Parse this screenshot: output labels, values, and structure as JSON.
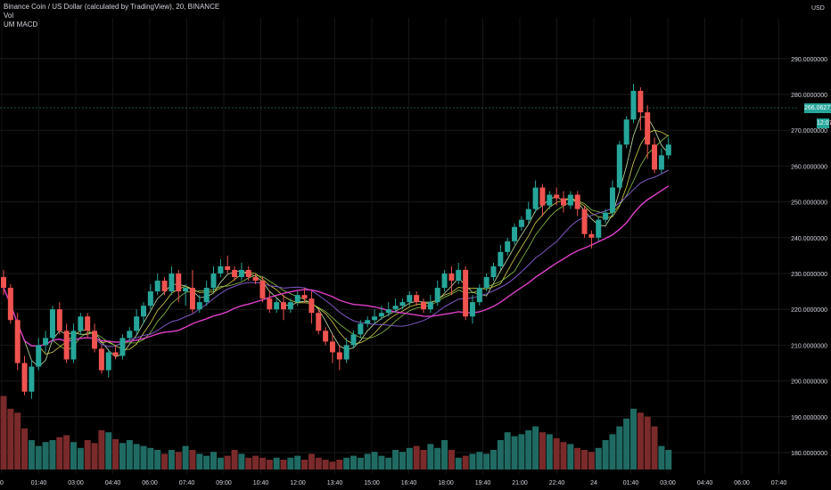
{
  "legend": {
    "title": "Binance Coin / US Dollar (calculated by TradingView), 20, BINANCE",
    "vol": "Vol",
    "indicator": "UM MACD"
  },
  "price_axis": {
    "unit": "USD",
    "current_price": "266.0627735",
    "countdown": "12:07"
  },
  "colors": {
    "up": "#26a69a",
    "down": "#ef5350",
    "vol_up": "#1f6b63",
    "vol_down": "#7a2a2a",
    "ma_magenta": "#e040c8",
    "ma_purple": "#7e57c2",
    "ma_yellow": "#d4d04a",
    "ma_green": "#8bc34a",
    "ma_lightgreen": "#c5e1a5",
    "background": "#000000"
  },
  "chart_data": {
    "type": "candlestick",
    "yaxis": {
      "min": 180,
      "max": 290,
      "ticks": [
        "180.0000000",
        "190.0000000",
        "200.0000000",
        "210.0000000",
        "220.0000000",
        "230.0000000",
        "240.0000000",
        "250.0000000",
        "260.0000000",
        "270.0000000",
        "280.0000000",
        "290.0000000"
      ]
    },
    "xaxis": {
      "ticks": [
        "0",
        "01:40",
        "03:00",
        "04:40",
        "06:00",
        "07:40",
        "09:00",
        "10:40",
        "12:00",
        "13:40",
        "15:00",
        "16:40",
        "18:00",
        "19:40",
        "21:00",
        "22:40",
        "24",
        "01:40",
        "03:00",
        "04:40",
        "06:00",
        "07:40"
      ]
    },
    "candles": [
      [
        229,
        226,
        231,
        224
      ],
      [
        226,
        217,
        227,
        216
      ],
      [
        217,
        205,
        219,
        203
      ],
      [
        205,
        197,
        207,
        196
      ],
      [
        197,
        204,
        206,
        195
      ],
      [
        204,
        210,
        212,
        203
      ],
      [
        210,
        212,
        214,
        208
      ],
      [
        212,
        220,
        221,
        211
      ],
      [
        220,
        214,
        222,
        213
      ],
      [
        214,
        206,
        216,
        205
      ],
      [
        206,
        214,
        216,
        205
      ],
      [
        214,
        218,
        219,
        213
      ],
      [
        218,
        214,
        219,
        212
      ],
      [
        214,
        209,
        216,
        208
      ],
      [
        209,
        203,
        210,
        202
      ],
      [
        203,
        208,
        209,
        201
      ],
      [
        208,
        207,
        210,
        206
      ],
      [
        207,
        212,
        213,
        206
      ],
      [
        212,
        214,
        215,
        211
      ],
      [
        214,
        218,
        220,
        213
      ],
      [
        218,
        221,
        222,
        216
      ],
      [
        221,
        225,
        227,
        220
      ],
      [
        225,
        228,
        230,
        224
      ],
      [
        228,
        225,
        229,
        224
      ],
      [
        225,
        230,
        232,
        224
      ],
      [
        230,
        225,
        231,
        222
      ],
      [
        225,
        226,
        227,
        221
      ],
      [
        226,
        220,
        231,
        219
      ],
      [
        220,
        222,
        224,
        219
      ],
      [
        222,
        226,
        228,
        221
      ],
      [
        226,
        230,
        232,
        225
      ],
      [
        230,
        232,
        234,
        229
      ],
      [
        232,
        231,
        235,
        230
      ],
      [
        231,
        229,
        232,
        228
      ],
      [
        229,
        231,
        233,
        228
      ],
      [
        231,
        229,
        232,
        228
      ],
      [
        229,
        228,
        230,
        227
      ],
      [
        228,
        223,
        229,
        222
      ],
      [
        223,
        220,
        225,
        219
      ],
      [
        220,
        222,
        223,
        219
      ],
      [
        222,
        220,
        224,
        217
      ],
      [
        220,
        222,
        223,
        219
      ],
      [
        222,
        224,
        225,
        221
      ],
      [
        224,
        223,
        226,
        222
      ],
      [
        223,
        219,
        225,
        216
      ],
      [
        219,
        214,
        220,
        213
      ],
      [
        214,
        211,
        215,
        210
      ],
      [
        211,
        208,
        213,
        205
      ],
      [
        208,
        206,
        210,
        203
      ],
      [
        206,
        210,
        212,
        205
      ],
      [
        210,
        213,
        214,
        209
      ],
      [
        213,
        216,
        217,
        212
      ],
      [
        216,
        217,
        218,
        215
      ],
      [
        217,
        218,
        220,
        216
      ],
      [
        218,
        219,
        221,
        217
      ],
      [
        219,
        220,
        222,
        218
      ],
      [
        220,
        221,
        223,
        219
      ],
      [
        221,
        222,
        223,
        220
      ],
      [
        222,
        224,
        225,
        221
      ],
      [
        224,
        222,
        225,
        221
      ],
      [
        222,
        220,
        223,
        219
      ],
      [
        220,
        222,
        224,
        219
      ],
      [
        222,
        226,
        228,
        221
      ],
      [
        226,
        230,
        231,
        225
      ],
      [
        230,
        228,
        232,
        224
      ],
      [
        228,
        231,
        233,
        227
      ],
      [
        231,
        218,
        232,
        217
      ],
      [
        218,
        222,
        224,
        216
      ],
      [
        222,
        226,
        227,
        221
      ],
      [
        226,
        229,
        230,
        225
      ],
      [
        229,
        232,
        233,
        228
      ],
      [
        232,
        236,
        238,
        231
      ],
      [
        236,
        239,
        240,
        235
      ],
      [
        239,
        243,
        244,
        238
      ],
      [
        243,
        245,
        246,
        242
      ],
      [
        245,
        248,
        250,
        244
      ],
      [
        248,
        254,
        256,
        247
      ],
      [
        254,
        249,
        255,
        246
      ],
      [
        249,
        252,
        253,
        248
      ],
      [
        252,
        251,
        254,
        249
      ],
      [
        251,
        249,
        253,
        247
      ],
      [
        249,
        252,
        253,
        248
      ],
      [
        252,
        248,
        253,
        246
      ],
      [
        248,
        241,
        249,
        240
      ],
      [
        241,
        240,
        242,
        237
      ],
      [
        240,
        245,
        246,
        239
      ],
      [
        245,
        247,
        248,
        244
      ],
      [
        247,
        254,
        256,
        246
      ],
      [
        254,
        266,
        267,
        253
      ],
      [
        266,
        273,
        274,
        265
      ],
      [
        273,
        281,
        283,
        272
      ],
      [
        281,
        275,
        282,
        270
      ],
      [
        275,
        266,
        277,
        262
      ],
      [
        266,
        259,
        268,
        258
      ],
      [
        259,
        263,
        265,
        258
      ],
      [
        263,
        266,
        268,
        262
      ]
    ],
    "volume_pct": [
      0.75,
      0.62,
      0.58,
      0.42,
      0.3,
      0.24,
      0.28,
      0.3,
      0.33,
      0.35,
      0.28,
      0.22,
      0.3,
      0.27,
      0.4,
      0.38,
      0.31,
      0.27,
      0.3,
      0.26,
      0.24,
      0.22,
      0.2,
      0.16,
      0.2,
      0.18,
      0.24,
      0.2,
      0.16,
      0.14,
      0.18,
      0.12,
      0.14,
      0.2,
      0.16,
      0.12,
      0.14,
      0.12,
      0.1,
      0.12,
      0.1,
      0.12,
      0.14,
      0.1,
      0.16,
      0.12,
      0.1,
      0.08,
      0.1,
      0.12,
      0.14,
      0.12,
      0.16,
      0.18,
      0.14,
      0.12,
      0.2,
      0.18,
      0.22,
      0.24,
      0.2,
      0.26,
      0.22,
      0.3,
      0.2,
      0.12,
      0.14,
      0.16,
      0.18,
      0.16,
      0.2,
      0.3,
      0.38,
      0.34,
      0.36,
      0.4,
      0.44,
      0.38,
      0.36,
      0.32,
      0.28,
      0.26,
      0.22,
      0.2,
      0.18,
      0.22,
      0.3,
      0.36,
      0.44,
      0.52,
      0.62,
      0.58,
      0.54,
      0.44,
      0.24,
      0.2
    ]
  }
}
